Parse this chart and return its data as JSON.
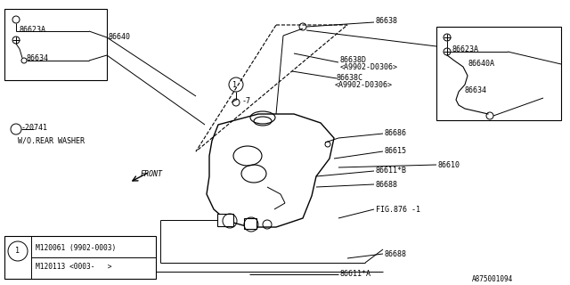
{
  "bg_color": "#ffffff",
  "line_color": "#000000",
  "part_number": "A875001094",
  "legend_line1": "M120061 (9902-0003)",
  "legend_line2": "M120113 <0003-   >",
  "figw": 6.4,
  "figh": 3.2,
  "dpi": 100
}
